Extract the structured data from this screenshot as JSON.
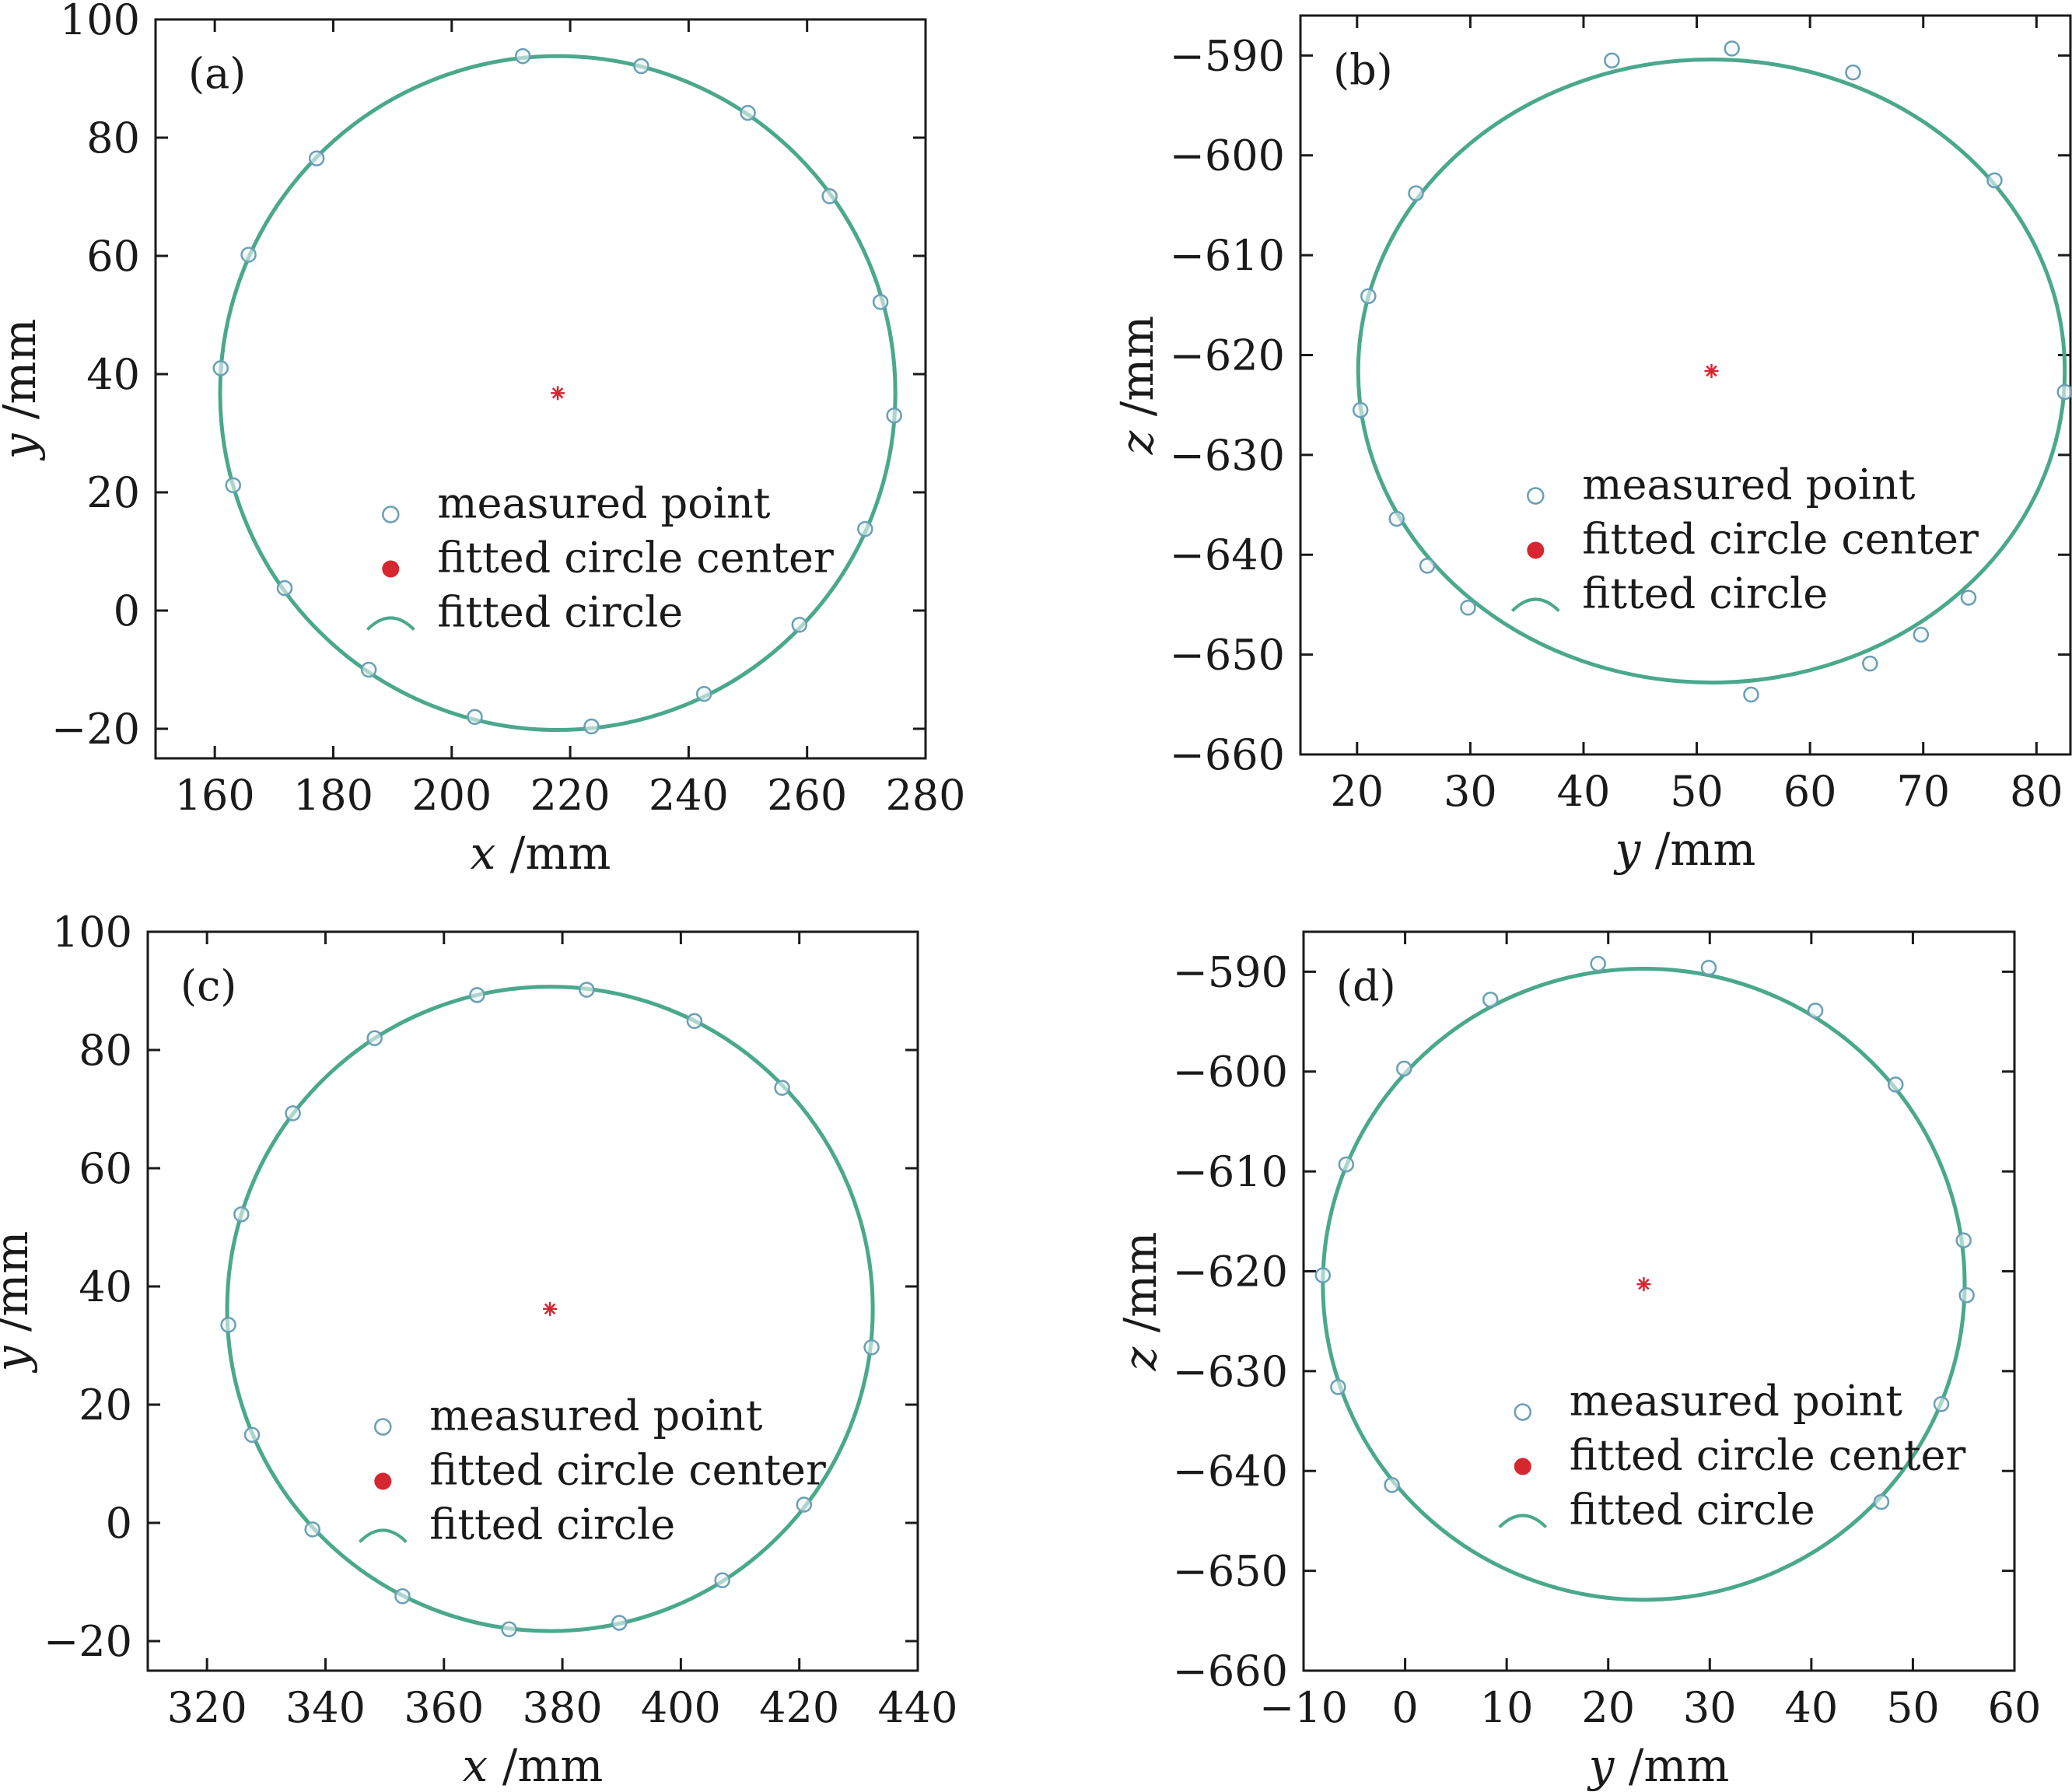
{
  "colors": {
    "circle": "#4aa88c",
    "marker": "#6a9fb5",
    "center": "#d62630",
    "axes": "#1a1a1a"
  },
  "legend": {
    "measured_point": "measured point",
    "fitted_center": "fitted circle center",
    "fitted_circle": "fitted circle"
  },
  "chart_data": [
    {
      "panel": "(a)",
      "type": "scatter",
      "xlabel_var": "x",
      "xlabel_unit": " /mm",
      "ylabel_var": "y",
      "ylabel_unit": " /mm",
      "xlim": [
        150,
        280
      ],
      "ylim": [
        -25,
        100
      ],
      "xticks": [
        160,
        180,
        200,
        220,
        240,
        260,
        280
      ],
      "xtick_labels": [
        "160",
        "180",
        "200",
        "220",
        "240",
        "260",
        "280"
      ],
      "yticks": [
        -20,
        0,
        20,
        40,
        60,
        80,
        100
      ],
      "ytick_labels": [
        "−20",
        "0",
        "20",
        "40",
        "60",
        "80",
        "100"
      ],
      "center": [
        217.9,
        36.8
      ],
      "radius": 57,
      "legend_position": "lower-right",
      "points": [
        [
          212,
          93.8
        ],
        [
          232,
          92.1
        ],
        [
          250,
          84.2
        ],
        [
          263.8,
          70.1
        ],
        [
          272.4,
          52.2
        ],
        [
          274.7,
          33
        ],
        [
          269.8,
          13.8
        ],
        [
          258.7,
          -2.4
        ],
        [
          242.6,
          -14.1
        ],
        [
          223.6,
          -19.6
        ],
        [
          203.9,
          -18
        ],
        [
          186,
          -10
        ],
        [
          171.8,
          3.8
        ],
        [
          163.1,
          21.2
        ],
        [
          161,
          41
        ],
        [
          165.7,
          60.2
        ],
        [
          177.2,
          76.5
        ]
      ]
    },
    {
      "panel": "(b)",
      "type": "scatter",
      "xlabel_var": "y",
      "xlabel_unit": " /mm",
      "ylabel_var": "z",
      "ylabel_unit": " /mm",
      "xlim": [
        15,
        83
      ],
      "ylim": [
        -660,
        -586
      ],
      "xticks": [
        20,
        30,
        40,
        50,
        60,
        70,
        80
      ],
      "xtick_labels": [
        "20",
        "30",
        "40",
        "50",
        "60",
        "70",
        "80"
      ],
      "yticks": [
        -660,
        -650,
        -640,
        -630,
        -620,
        -610,
        -600,
        -590
      ],
      "ytick_labels": [
        "−660",
        "−650",
        "−640",
        "−630",
        "−620",
        "−610",
        "−600",
        "−590"
      ],
      "center": [
        51.3,
        -621.6
      ],
      "radius": 31.2,
      "legend_position": "center-right",
      "points": [
        [
          53.1,
          -589.3
        ],
        [
          63.8,
          -591.7
        ],
        [
          76.3,
          -602.5
        ],
        [
          82.5,
          -623.7
        ],
        [
          74,
          -644.3
        ],
        [
          69.8,
          -648
        ],
        [
          65.3,
          -650.9
        ],
        [
          54.8,
          -654
        ],
        [
          29.8,
          -645.3
        ],
        [
          26.2,
          -641.1
        ],
        [
          23.5,
          -636.4
        ],
        [
          20.3,
          -625.5
        ],
        [
          21,
          -614.1
        ],
        [
          25.2,
          -603.8
        ],
        [
          42.5,
          -590.5
        ]
      ]
    },
    {
      "panel": "(c)",
      "type": "scatter",
      "xlabel_var": "x",
      "xlabel_unit": " /mm",
      "ylabel_var": "y",
      "ylabel_unit": " /mm",
      "xlim": [
        310,
        440
      ],
      "ylim": [
        -25,
        100
      ],
      "xticks": [
        320,
        340,
        360,
        380,
        400,
        420,
        440
      ],
      "xtick_labels": [
        "320",
        "340",
        "360",
        "380",
        "400",
        "420",
        "440"
      ],
      "yticks": [
        -20,
        0,
        20,
        40,
        60,
        80,
        100
      ],
      "ytick_labels": [
        "−20",
        "0",
        "20",
        "40",
        "60",
        "80",
        "100"
      ],
      "center": [
        377.9,
        36.2
      ],
      "radius": 54.5,
      "legend_position": "lower-right",
      "points": [
        [
          384.1,
          90.2
        ],
        [
          365.6,
          89.3
        ],
        [
          402.3,
          84.9
        ],
        [
          417.1,
          73.6
        ],
        [
          348.3,
          82
        ],
        [
          334.5,
          69.3
        ],
        [
          325.8,
          52.2
        ],
        [
          323.6,
          33.5
        ],
        [
          432.2,
          29.7
        ],
        [
          327.6,
          14.9
        ],
        [
          420.8,
          3.1
        ],
        [
          337.8,
          -1.1
        ],
        [
          407,
          -9.7
        ],
        [
          353,
          -12.4
        ],
        [
          389.6,
          -16.9
        ],
        [
          371,
          -18
        ]
      ]
    },
    {
      "panel": "(d)",
      "type": "scatter",
      "xlabel_var": "y",
      "xlabel_unit": " /mm",
      "ylabel_var": "z",
      "ylabel_unit": " /mm",
      "xlim": [
        -10,
        60
      ],
      "ylim": [
        -660,
        -586
      ],
      "xticks": [
        -10,
        0,
        10,
        20,
        30,
        40,
        50,
        60
      ],
      "xtick_labels": [
        "−10",
        "0",
        "10",
        "20",
        "30",
        "40",
        "50",
        "60"
      ],
      "yticks": [
        -660,
        -650,
        -640,
        -630,
        -620,
        -610,
        -600,
        -590
      ],
      "ytick_labels": [
        "−660",
        "−650",
        "−640",
        "−630",
        "−620",
        "−610",
        "−600",
        "−590"
      ],
      "center": [
        23.5,
        -621.3
      ],
      "radius": 31.6,
      "legend_position": "center-right",
      "points": [
        [
          19,
          -589.2
        ],
        [
          29.9,
          -589.6
        ],
        [
          8.4,
          -592.8
        ],
        [
          40.4,
          -593.9
        ],
        [
          -0.1,
          -599.7
        ],
        [
          48.3,
          -601.3
        ],
        [
          -5.8,
          -609.3
        ],
        [
          55,
          -616.9
        ],
        [
          -8.1,
          -620.4
        ],
        [
          55.3,
          -622.4
        ],
        [
          -6.6,
          -631.6
        ],
        [
          52.8,
          -633.3
        ],
        [
          -1.3,
          -641.4
        ],
        [
          46.9,
          -643.1
        ]
      ]
    }
  ]
}
